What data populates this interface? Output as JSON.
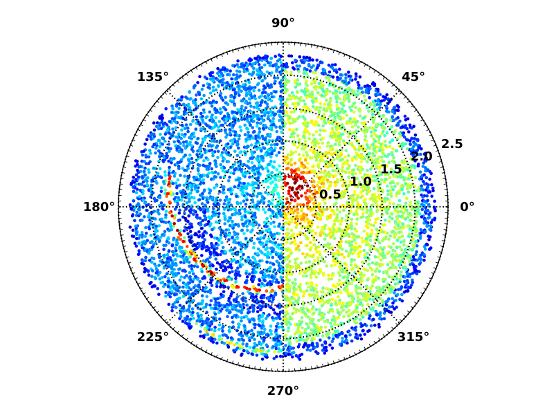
{
  "chart_data": {
    "type": "scatter",
    "projection": "polar",
    "theta_tick_labels": [
      "0°",
      "45°",
      "90°",
      "135°",
      "180°",
      "225°",
      "270°",
      "315°"
    ],
    "theta_ticks_deg": [
      0,
      45,
      90,
      135,
      180,
      225,
      270,
      315
    ],
    "r_tick_labels": [
      "0.5",
      "1.0",
      "1.5",
      "2.0",
      "2.5"
    ],
    "r_ticks": [
      0.5,
      1.0,
      1.5,
      2.0,
      2.5
    ],
    "rlim": [
      0,
      2.5
    ],
    "grid": true,
    "colormap": "jet",
    "colormap_stops": [
      "#00007f",
      "#0000ff",
      "#007fff",
      "#00ffff",
      "#7fff7f",
      "#ffff00",
      "#ff7f00",
      "#ff0000",
      "#7f0000"
    ],
    "point_density": "dense",
    "features": [
      {
        "description": "right half (theta -90° to 90°) higher overall density",
        "theta_range": [
          -90,
          90
        ],
        "r_range": [
          0,
          2.1
        ],
        "level": 0.62
      },
      {
        "description": "hot spot near origin",
        "theta_center": 60,
        "r": 0.35,
        "level": 0.95
      },
      {
        "description": "bright arc",
        "theta_range": [
          165,
          270
        ],
        "r_range": [
          1.8,
          1.2
        ],
        "level": 0.9
      },
      {
        "description": "second arc",
        "theta_range": [
          232,
          270
        ],
        "r_range": [
          2.25,
          2.2
        ],
        "level": 0.62
      },
      {
        "description": "boundary fades at outer radius",
        "r_max": 2.3
      }
    ]
  }
}
